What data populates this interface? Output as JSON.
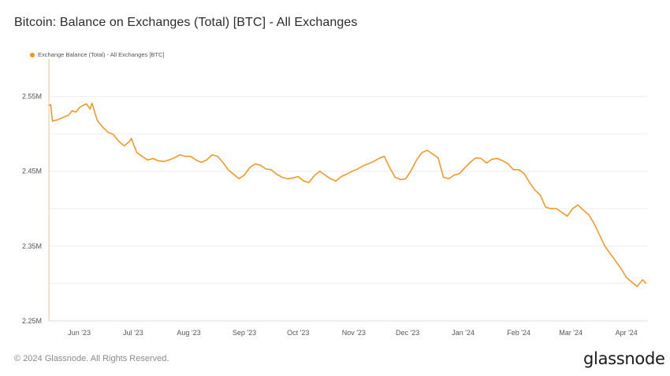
{
  "colors": {
    "series": "#f7931a",
    "grid": "#eeeeee",
    "baseline": "#dddddd"
  },
  "chart_data": {
    "type": "line",
    "title": "Bitcoin: Balance on Exchanges (Total) [BTC] - All Exchanges",
    "legend": "Exchange Balance (Total) - All Exchanges [BTC]",
    "legend_position": "top-left",
    "grid": true,
    "x_range": [
      "2023-05-15",
      "2024-04-13"
    ],
    "x_ticks": [
      {
        "label": "Jun '23",
        "date": "2023-06-01"
      },
      {
        "label": "Jul '23",
        "date": "2023-07-01"
      },
      {
        "label": "Aug '23",
        "date": "2023-08-01"
      },
      {
        "label": "Sep '23",
        "date": "2023-09-01"
      },
      {
        "label": "Oct '23",
        "date": "2023-10-01"
      },
      {
        "label": "Nov '23",
        "date": "2023-11-01"
      },
      {
        "label": "Dec '23",
        "date": "2023-12-01"
      },
      {
        "label": "Jan '24",
        "date": "2024-01-01"
      },
      {
        "label": "Feb '24",
        "date": "2024-02-01"
      },
      {
        "label": "Mar '24",
        "date": "2024-03-01"
      },
      {
        "label": "Apr '24",
        "date": "2024-04-01"
      }
    ],
    "y_ticks": [
      {
        "label": "2.55M",
        "value": 2.55
      },
      {
        "label": "2.45M",
        "value": 2.45
      },
      {
        "label": "2.35M",
        "value": 2.35
      },
      {
        "label": "2.25M",
        "value": 2.25
      }
    ],
    "ylim": [
      2.25,
      2.6
    ],
    "series": [
      {
        "name": "Exchange Balance (Total) - All Exchanges [BTC]",
        "x": [
          "2023-05-15",
          "2023-05-16",
          "2023-05-17",
          "2023-05-20",
          "2023-05-23",
          "2023-05-26",
          "2023-05-28",
          "2023-05-30",
          "2023-06-01",
          "2023-06-03",
          "2023-06-05",
          "2023-06-07",
          "2023-06-08",
          "2023-06-11",
          "2023-06-14",
          "2023-06-17",
          "2023-06-20",
          "2023-06-23",
          "2023-06-26",
          "2023-06-29",
          "2023-06-30",
          "2023-07-03",
          "2023-07-06",
          "2023-07-09",
          "2023-07-12",
          "2023-07-15",
          "2023-07-18",
          "2023-07-21",
          "2023-07-24",
          "2023-07-27",
          "2023-07-30",
          "2023-08-02",
          "2023-08-05",
          "2023-08-08",
          "2023-08-11",
          "2023-08-14",
          "2023-08-17",
          "2023-08-20",
          "2023-08-23",
          "2023-08-26",
          "2023-08-29",
          "2023-09-01",
          "2023-09-04",
          "2023-09-07",
          "2023-09-10",
          "2023-09-13",
          "2023-09-16",
          "2023-09-19",
          "2023-09-22",
          "2023-09-25",
          "2023-09-28",
          "2023-10-01",
          "2023-10-04",
          "2023-10-07",
          "2023-10-10",
          "2023-10-13",
          "2023-10-16",
          "2023-10-19",
          "2023-10-22",
          "2023-10-25",
          "2023-10-28",
          "2023-10-31",
          "2023-11-03",
          "2023-11-06",
          "2023-11-09",
          "2023-11-12",
          "2023-11-15",
          "2023-11-18",
          "2023-11-21",
          "2023-11-24",
          "2023-11-27",
          "2023-11-30",
          "2023-12-03",
          "2023-12-06",
          "2023-12-09",
          "2023-12-12",
          "2023-12-15",
          "2023-12-18",
          "2023-12-21",
          "2023-12-24",
          "2023-12-27",
          "2023-12-30",
          "2024-01-02",
          "2024-01-05",
          "2024-01-08",
          "2024-01-11",
          "2024-01-14",
          "2024-01-17",
          "2024-01-20",
          "2024-01-23",
          "2024-01-26",
          "2024-01-29",
          "2024-02-01",
          "2024-02-04",
          "2024-02-07",
          "2024-02-10",
          "2024-02-13",
          "2024-02-16",
          "2024-02-19",
          "2024-02-22",
          "2024-02-25",
          "2024-02-28",
          "2024-03-02",
          "2024-03-05",
          "2024-03-08",
          "2024-03-11",
          "2024-03-14",
          "2024-03-17",
          "2024-03-20",
          "2024-03-23",
          "2024-03-26",
          "2024-03-29",
          "2024-04-01",
          "2024-04-04",
          "2024-04-07",
          "2024-04-10",
          "2024-04-12"
        ],
        "y": [
          2.538,
          2.539,
          2.517,
          2.519,
          2.522,
          2.525,
          2.531,
          2.529,
          2.535,
          2.538,
          2.54,
          2.533,
          2.541,
          2.518,
          2.509,
          2.502,
          2.499,
          2.49,
          2.484,
          2.49,
          2.494,
          2.475,
          2.47,
          2.465,
          2.467,
          2.464,
          2.463,
          2.465,
          2.468,
          2.472,
          2.47,
          2.47,
          2.465,
          2.462,
          2.465,
          2.472,
          2.47,
          2.462,
          2.452,
          2.446,
          2.44,
          2.445,
          2.455,
          2.46,
          2.458,
          2.453,
          2.452,
          2.446,
          2.442,
          2.44,
          2.441,
          2.443,
          2.437,
          2.435,
          2.444,
          2.45,
          2.445,
          2.44,
          2.437,
          2.443,
          2.446,
          2.45,
          2.453,
          2.457,
          2.46,
          2.463,
          2.467,
          2.47,
          2.455,
          2.442,
          2.439,
          2.44,
          2.451,
          2.465,
          2.475,
          2.478,
          2.473,
          2.468,
          2.442,
          2.44,
          2.445,
          2.447,
          2.455,
          2.462,
          2.468,
          2.467,
          2.461,
          2.466,
          2.467,
          2.464,
          2.46,
          2.452,
          2.452,
          2.447,
          2.435,
          2.425,
          2.418,
          2.402,
          2.4,
          2.4,
          2.395,
          2.39,
          2.4,
          2.405,
          2.398,
          2.392,
          2.38,
          2.365,
          2.35,
          2.34,
          2.33,
          2.32,
          2.308,
          2.302,
          2.296,
          2.305,
          2.3
        ]
      }
    ]
  },
  "footer": {
    "copyright": "© 2024 Glassnode. All Rights Reserved.",
    "logo": "glassnode"
  }
}
